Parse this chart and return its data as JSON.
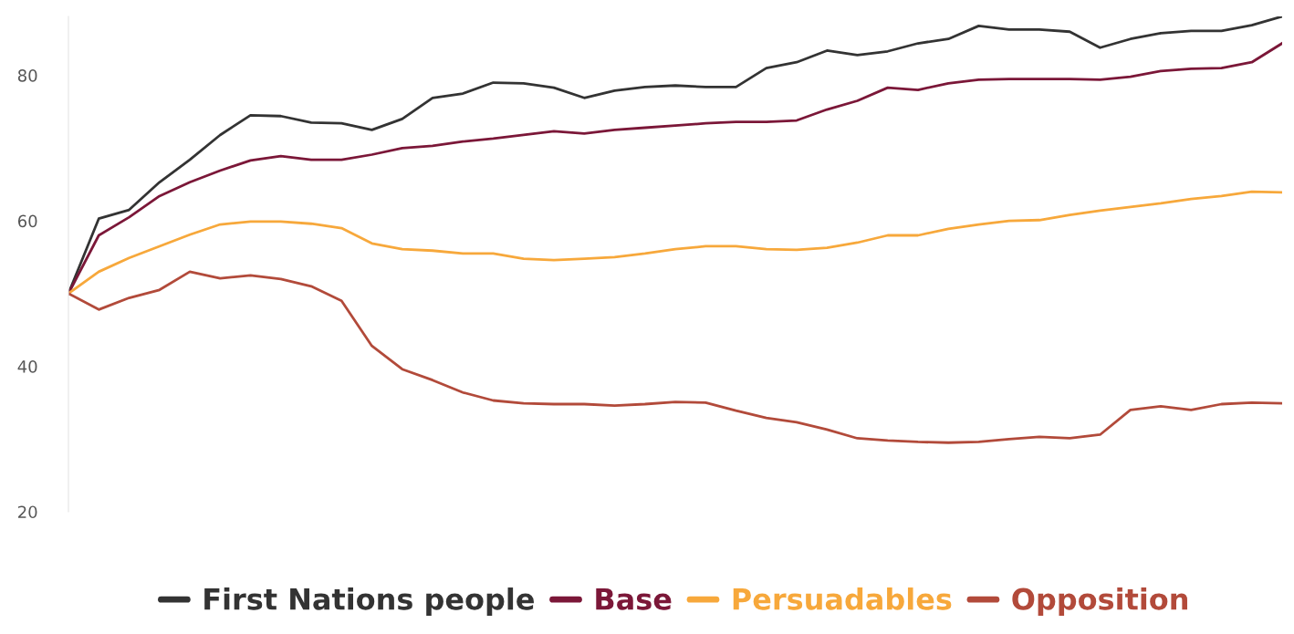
{
  "chart_data": {
    "type": "line",
    "categories": [
      null,
      null,
      null,
      null,
      null,
      null,
      null,
      null,
      null,
      null,
      null,
      null,
      null,
      null,
      null,
      null,
      null,
      null,
      null,
      null,
      null,
      null,
      null,
      null,
      null,
      null,
      null,
      null,
      null,
      null,
      null,
      null,
      null,
      null,
      null,
      null,
      null,
      null,
      null,
      null,
      null
    ],
    "series": [
      {
        "name": "First Nations people",
        "color": "#333333",
        "values": [
          50,
          60.3,
          61.5,
          65.3,
          68.4,
          71.8,
          74.5,
          74.4,
          73.5,
          73.4,
          72.5,
          74,
          76.9,
          77.5,
          79,
          78.9,
          78.3,
          76.9,
          77.9,
          78.4,
          78.6,
          78.4,
          78.4,
          81,
          81.8,
          83.4,
          82.8,
          83.3,
          84.4,
          85,
          86.8,
          86.3,
          86.3,
          86,
          83.8,
          85,
          85.8,
          86.1,
          86.1,
          86.9,
          88.1
        ]
      },
      {
        "name": "Base",
        "color": "#7b1738",
        "values": [
          50,
          58,
          60.5,
          63.4,
          65.3,
          66.9,
          68.3,
          68.9,
          68.4,
          68.4,
          69.1,
          70,
          70.3,
          70.9,
          71.3,
          71.8,
          72.3,
          72,
          72.5,
          72.8,
          73.1,
          73.4,
          73.6,
          73.6,
          73.8,
          75.3,
          76.5,
          78.3,
          78,
          78.9,
          79.4,
          79.5,
          79.5,
          79.5,
          79.4,
          79.8,
          80.6,
          80.9,
          81,
          81.8,
          84.4
        ]
      },
      {
        "name": "Persuadables",
        "color": "#f7a83b",
        "values": [
          50,
          53,
          54.9,
          56.5,
          58.1,
          59.5,
          59.9,
          59.9,
          59.6,
          59,
          56.9,
          56.1,
          55.9,
          55.5,
          55.5,
          54.8,
          54.6,
          54.8,
          55,
          55.5,
          56.1,
          56.5,
          56.5,
          56.1,
          56,
          56.3,
          57,
          58,
          58,
          58.9,
          59.5,
          60,
          60.1,
          60.8,
          61.4,
          61.9,
          62.4,
          63,
          63.4,
          64,
          63.9
        ]
      },
      {
        "name": "Opposition",
        "color": "#b24a3a",
        "values": [
          50,
          47.8,
          49.4,
          50.5,
          53,
          52.1,
          52.5,
          52,
          51,
          49,
          42.8,
          39.6,
          38.1,
          36.4,
          35.3,
          34.9,
          34.8,
          34.8,
          34.6,
          34.8,
          35.1,
          35,
          33.9,
          32.9,
          32.3,
          31.3,
          30.1,
          29.8,
          29.6,
          29.5,
          29.6,
          30,
          30.3,
          30.1,
          30.6,
          34,
          34.5,
          34,
          34.8,
          35,
          34.9
        ]
      }
    ],
    "ylim": [
      20,
      88.1
    ],
    "yticks": [
      20,
      40,
      60,
      80
    ],
    "grid": false,
    "legend": "bottom",
    "marker": "none",
    "line_style": "solid"
  }
}
